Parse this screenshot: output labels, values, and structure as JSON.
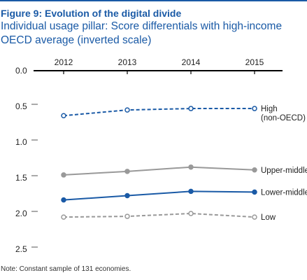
{
  "figure": {
    "title": "Figure 9: Evolution of the digital divide",
    "subtitle": "Individual usage pillar: Score differentials with high-income OECD average (inverted scale)",
    "note": "Note: Constant sample of 131 economies."
  },
  "chart_data": {
    "type": "line",
    "x": [
      "2012",
      "2013",
      "2014",
      "2015"
    ],
    "y_ticks": [
      "0.0",
      "0.5",
      "1.0",
      "1.5",
      "2.0",
      "2.5"
    ],
    "ylim": [
      0,
      2.5
    ],
    "inverted_y": true,
    "x_axis_position": "top",
    "grid": false,
    "series": [
      {
        "name": "High (non-OECD)",
        "label_lines": [
          "High",
          "(non-OECD)"
        ],
        "values": [
          0.63,
          0.55,
          0.53,
          0.53
        ],
        "color": "#1a5aa6",
        "style": "dashed",
        "marker": "open"
      },
      {
        "name": "Upper-middle",
        "label_lines": [
          "Upper-middle"
        ],
        "values": [
          1.46,
          1.41,
          1.35,
          1.39
        ],
        "color": "#999999",
        "style": "solid",
        "marker": "filled"
      },
      {
        "name": "Lower-middle",
        "label_lines": [
          "Lower-middle"
        ],
        "values": [
          1.81,
          1.75,
          1.69,
          1.7
        ],
        "color": "#1a5aa6",
        "style": "solid",
        "marker": "filled"
      },
      {
        "name": "Low",
        "label_lines": [
          "Low"
        ],
        "values": [
          2.05,
          2.04,
          2.0,
          2.05
        ],
        "color": "#999999",
        "style": "dashed",
        "marker": "open"
      }
    ]
  }
}
